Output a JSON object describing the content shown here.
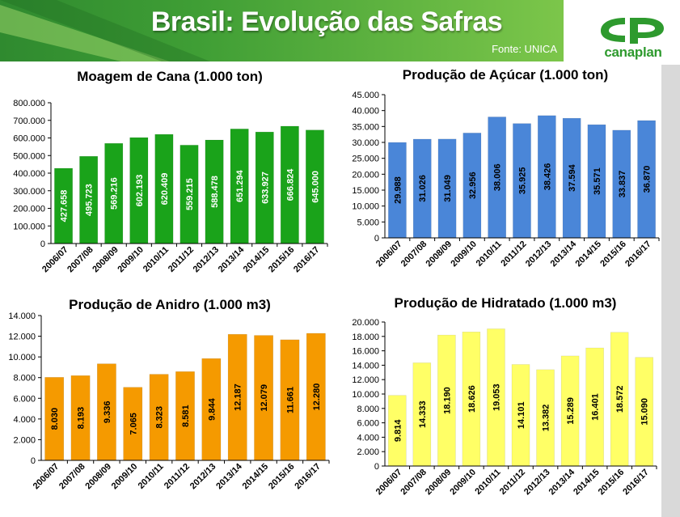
{
  "header": {
    "title": "Brasil: Evolução das Safras",
    "source": "Fonte: UNICA",
    "logo_text": "canaplan",
    "colors": {
      "banner_dark": "#2f8a2f",
      "banner_light": "#6fc040",
      "logo": "#2e9a2e"
    }
  },
  "chart_data": [
    {
      "id": "cane",
      "type": "bar",
      "title": "Moagem de Cana (1.000 ton)",
      "categories": [
        "2006/07",
        "2007/08",
        "2008/09",
        "2009/10",
        "2010/11",
        "2011/12",
        "2012/13",
        "2013/14",
        "2014/15",
        "2015/16",
        "2016/17"
      ],
      "values": [
        427658,
        495723,
        569216,
        602193,
        620409,
        559215,
        588478,
        651294,
        633927,
        666824,
        645000
      ],
      "labels": [
        "427.658",
        "495.723",
        "569.216",
        "602.193",
        "620.409",
        "559.215",
        "588.478",
        "651.294",
        "633.927",
        "666.824",
        "645.000"
      ],
      "ylim": [
        0,
        800000
      ],
      "yticks": [
        0,
        100000,
        200000,
        300000,
        400000,
        500000,
        600000,
        700000,
        800000
      ],
      "ytick_labels": [
        "0",
        "100.000",
        "200.000",
        "300.000",
        "400.000",
        "500.000",
        "600.000",
        "700.000",
        "800.000"
      ],
      "color": "#1aa31a",
      "label_color": "#ffffff",
      "grid": false
    },
    {
      "id": "sugar",
      "type": "bar",
      "title": "Produção de Açúcar (1.000 ton)",
      "categories": [
        "2006/07",
        "2007/08",
        "2008/09",
        "2009/10",
        "2010/11",
        "2011/12",
        "2012/13",
        "2013/14",
        "2014/15",
        "2015/16",
        "2016/17"
      ],
      "values": [
        29988,
        31026,
        31049,
        32956,
        38006,
        35925,
        38426,
        37594,
        35571,
        33837,
        36870
      ],
      "labels": [
        "29.988",
        "31.026",
        "31.049",
        "32.956",
        "38.006",
        "35.925",
        "38.426",
        "37.594",
        "35.571",
        "33.837",
        "36.870"
      ],
      "ylim": [
        0,
        45000
      ],
      "yticks": [
        0,
        5000,
        10000,
        15000,
        20000,
        25000,
        30000,
        35000,
        40000,
        45000
      ],
      "ytick_labels": [
        "0",
        "5.000",
        "10.000",
        "15.000",
        "20.000",
        "25.000",
        "30.000",
        "35.000",
        "40.000",
        "45.000"
      ],
      "color": "#4a86d8",
      "label_color": "#000000",
      "grid": false
    },
    {
      "id": "anhydrous",
      "type": "bar",
      "title": "Produção de Anidro (1.000 m3)",
      "categories": [
        "2006/07",
        "2007/08",
        "2008/09",
        "2009/10",
        "2010/11",
        "2011/12",
        "2012/13",
        "2013/14",
        "2014/15",
        "2015/16",
        "2016/17"
      ],
      "values": [
        8030,
        8193,
        9336,
        7065,
        8323,
        8581,
        9844,
        12187,
        12079,
        11661,
        12280
      ],
      "labels": [
        "8.030",
        "8.193",
        "9.336",
        "7.065",
        "8.323",
        "8.581",
        "9.844",
        "12.187",
        "12.079",
        "11.661",
        "12.280"
      ],
      "ylim": [
        0,
        14000
      ],
      "yticks": [
        0,
        2000,
        4000,
        6000,
        8000,
        10000,
        12000,
        14000
      ],
      "ytick_labels": [
        "0",
        "2.000",
        "4.000",
        "6.000",
        "8.000",
        "10.000",
        "12.000",
        "14.000"
      ],
      "color": "#f59a00",
      "label_color": "#000000",
      "grid": false
    },
    {
      "id": "hydrated",
      "type": "bar",
      "title": "Produção de Hidratado (1.000 m3)",
      "categories": [
        "2006/07",
        "2007/08",
        "2008/09",
        "2009/10",
        "2010/11",
        "2011/12",
        "2012/13",
        "2013/14",
        "2014/15",
        "2015/16",
        "2016/17"
      ],
      "values": [
        9814,
        14333,
        18190,
        18626,
        19053,
        14101,
        13382,
        15289,
        16401,
        18572,
        15090
      ],
      "labels": [
        "9.814",
        "14.333",
        "18.190",
        "18.626",
        "19.053",
        "14.101",
        "13.382",
        "15.289",
        "16.401",
        "18.572",
        "15.090"
      ],
      "ylim": [
        0,
        20000
      ],
      "yticks": [
        0,
        2000,
        4000,
        6000,
        8000,
        10000,
        12000,
        14000,
        16000,
        18000,
        20000
      ],
      "ytick_labels": [
        "0",
        "2.000",
        "4.000",
        "6.000",
        "8.000",
        "10.000",
        "12.000",
        "14.000",
        "16.000",
        "18.000",
        "20.000"
      ],
      "color": "#ffff66",
      "label_color": "#000000",
      "grid": false
    }
  ]
}
